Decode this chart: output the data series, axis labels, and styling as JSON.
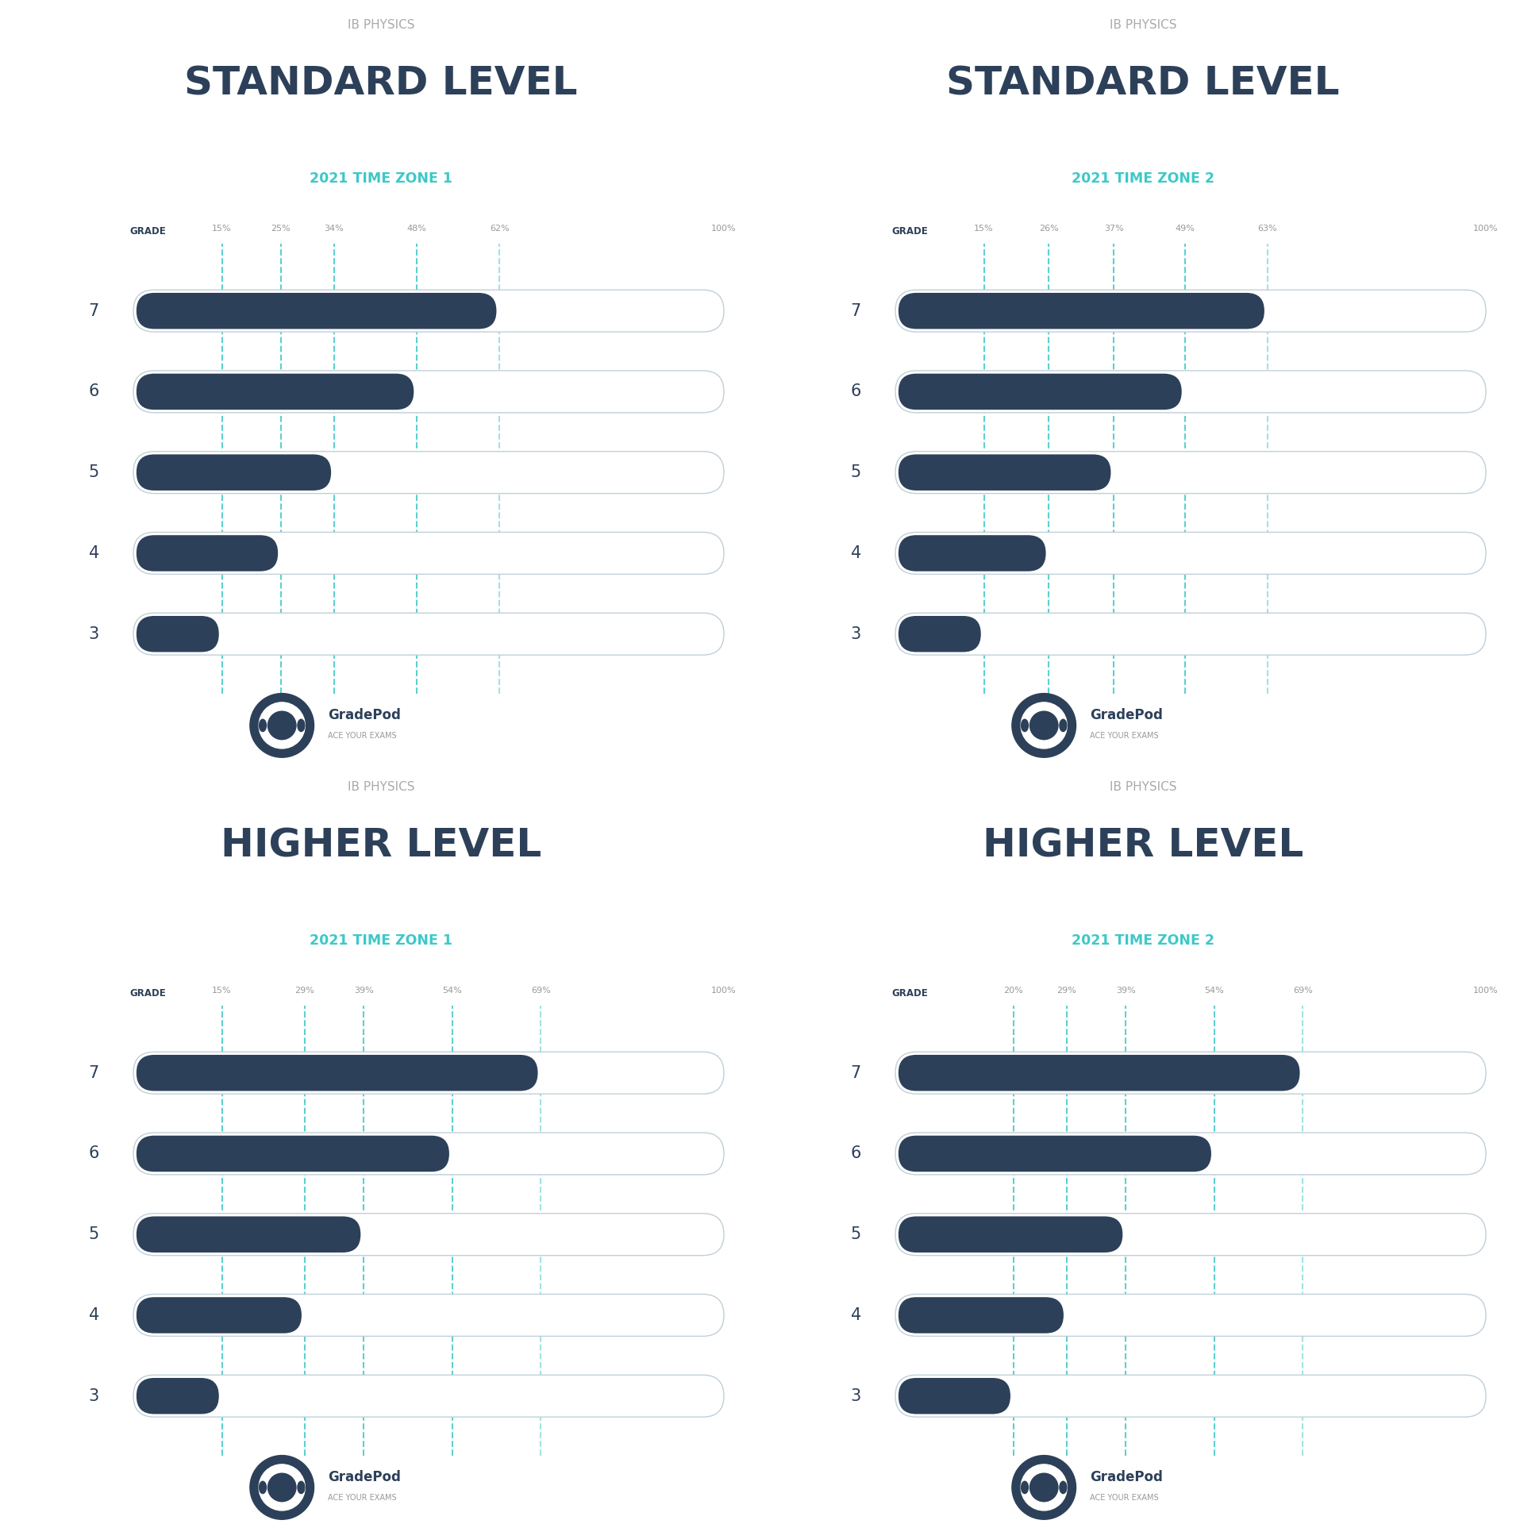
{
  "panels": [
    {
      "subject": "IB PHYSICS",
      "level": "STANDARD LEVEL",
      "zone": "2021 TIME ZONE 1",
      "boundaries": [
        15,
        25,
        34,
        48,
        62,
        100
      ],
      "grades": [
        7,
        6,
        5,
        4,
        3
      ],
      "bar_values": [
        62,
        48,
        34,
        25,
        15
      ],
      "col": 0,
      "row": 1
    },
    {
      "subject": "IB PHYSICS",
      "level": "STANDARD LEVEL",
      "zone": "2021 TIME ZONE 2",
      "boundaries": [
        15,
        26,
        37,
        49,
        63,
        100
      ],
      "grades": [
        7,
        6,
        5,
        4,
        3
      ],
      "bar_values": [
        63,
        49,
        37,
        26,
        15
      ],
      "col": 1,
      "row": 1
    },
    {
      "subject": "IB PHYSICS",
      "level": "HIGHER LEVEL",
      "zone": "2021 TIME ZONE 1",
      "boundaries": [
        15,
        29,
        39,
        54,
        69,
        100
      ],
      "grades": [
        7,
        6,
        5,
        4,
        3
      ],
      "bar_values": [
        69,
        54,
        39,
        29,
        15
      ],
      "col": 0,
      "row": 0
    },
    {
      "subject": "IB PHYSICS",
      "level": "HIGHER LEVEL",
      "zone": "2021 TIME ZONE 2",
      "boundaries": [
        20,
        29,
        39,
        54,
        69,
        100
      ],
      "grades": [
        7,
        6,
        5,
        4,
        3
      ],
      "bar_values": [
        69,
        54,
        39,
        29,
        20
      ],
      "col": 1,
      "row": 0
    }
  ],
  "dark_color": "#2d4059",
  "teal_color": "#3ec8c8",
  "teal_light": "#90dede",
  "bg_color": "#ffffff",
  "bar_outline_color": "#c0cfd8",
  "grade_label_color": "#2d4059",
  "subject_color": "#aaaaaa",
  "level_color": "#2d4059",
  "zone_color": "#3ec8c8",
  "tick_color": "#999999"
}
